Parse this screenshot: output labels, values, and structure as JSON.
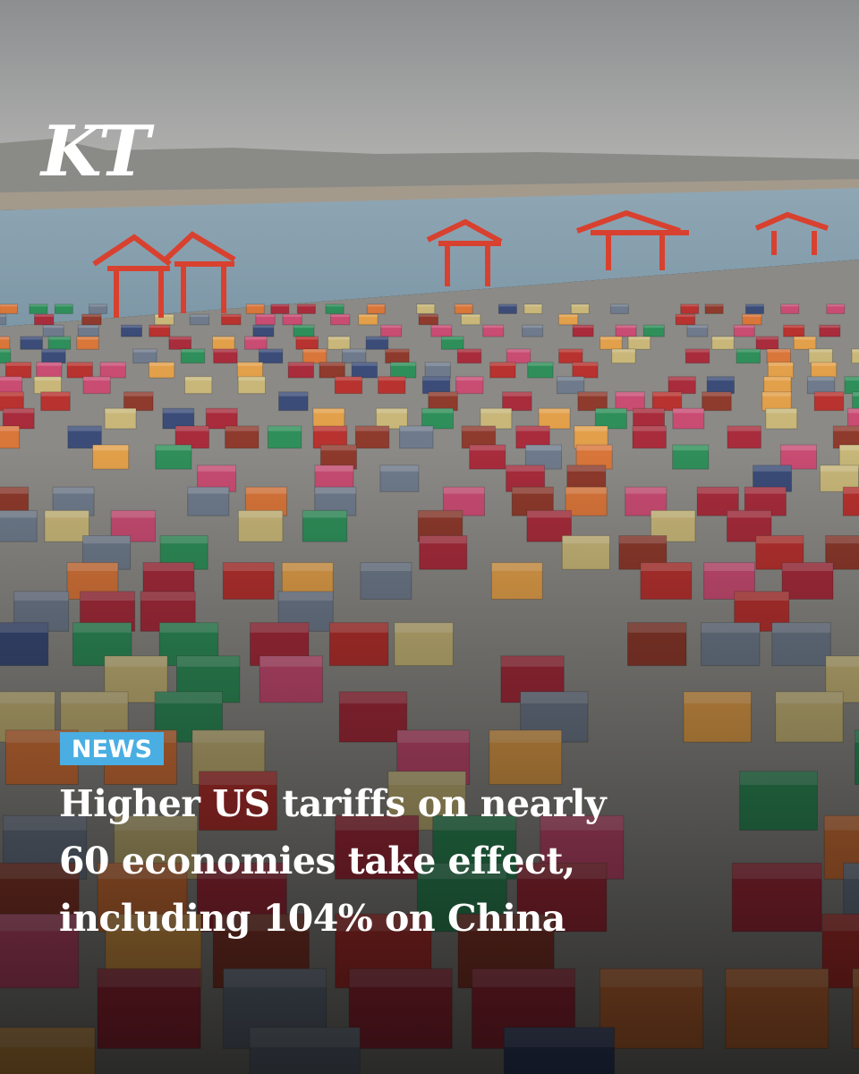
{
  "logo": "KT",
  "badge": "NEWS",
  "headline": {
    "lines": [
      "Higher US tariffs on nearly",
      "60 economies take effect,",
      "including 104% on China"
    ]
  }
}
